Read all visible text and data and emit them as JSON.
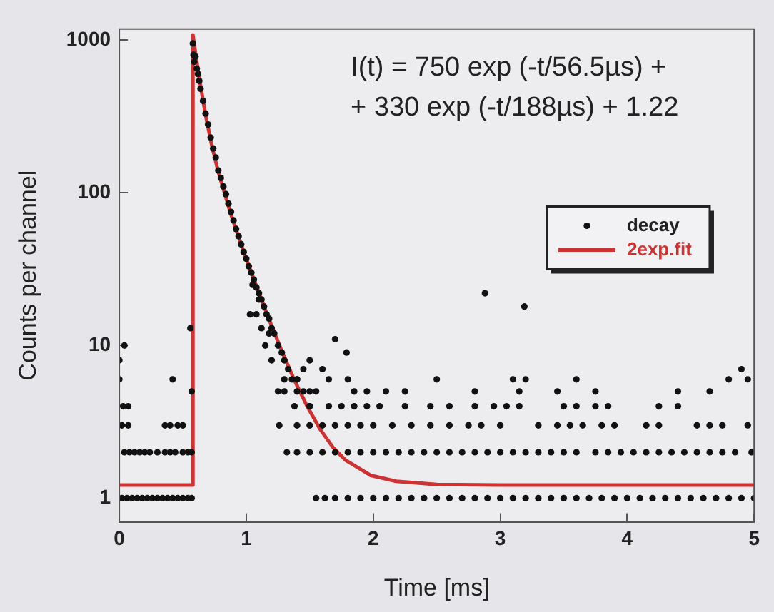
{
  "chart_data": {
    "type": "scatter",
    "xlabel": "Time [ms]",
    "ylabel": "Counts per channel",
    "xlim": [
      0,
      5
    ],
    "ylim": [
      0.72,
      1180
    ],
    "xticks": [
      0,
      1,
      2,
      3,
      4,
      5
    ],
    "yticks": [
      1,
      10,
      100,
      1000
    ],
    "log": "y",
    "grid": false,
    "legend": "right",
    "annotations": [
      "I(t) = 750 exp (-t/56.5µs) +",
      "+ 330 exp (-t/188µs) + 1.22"
    ],
    "series": [
      {
        "name": "decay",
        "type": "scatter",
        "color": "#111111",
        "marker": "circle",
        "x": [
          0.02,
          0.06,
          0.1,
          0.14,
          0.18,
          0.22,
          0.26,
          0.3,
          0.34,
          0.38,
          0.42,
          0.46,
          0.5,
          0.54,
          0.57,
          0.04,
          0.08,
          0.12,
          0.16,
          0.2,
          0.24,
          0.3,
          0.36,
          0.4,
          0.44,
          0.5,
          0.54,
          0.57,
          0.02,
          0.07,
          0.36,
          0.4,
          0.46,
          0.5,
          0.03,
          0.07,
          0,
          0,
          0.04,
          0.42,
          0.56,
          0.57,
          0.58,
          0.585,
          0.59,
          0.6,
          0.61,
          0.62,
          0.63,
          0.64,
          0.66,
          0.68,
          0.7,
          0.72,
          0.74,
          0.76,
          0.78,
          0.8,
          0.82,
          0.84,
          0.86,
          0.88,
          0.9,
          0.92,
          0.94,
          0.96,
          0.98,
          1.0,
          1.02,
          1.04,
          1.06,
          1.08,
          1.1,
          1.12,
          1.14,
          1.16,
          1.18,
          1.2,
          1.22,
          1.25,
          1.28,
          1.3,
          1.33,
          1.36,
          1.4,
          1.45,
          1.5,
          1.03,
          1.08,
          1.12,
          1.15,
          1.2,
          1.05,
          1.1,
          1.18,
          1.55,
          1.62,
          1.7,
          1.8,
          1.9,
          2.0,
          2.1,
          2.2,
          2.3,
          2.4,
          2.5,
          2.6,
          2.7,
          2.8,
          2.9,
          3.0,
          3.1,
          3.2,
          3.3,
          3.4,
          3.5,
          3.6,
          3.7,
          3.8,
          3.9,
          4.0,
          4.1,
          4.2,
          4.3,
          4.4,
          4.5,
          4.6,
          4.7,
          4.8,
          4.9,
          5.0,
          1.32,
          1.4,
          1.5,
          1.6,
          1.7,
          1.8,
          1.9,
          2.0,
          2.1,
          2.2,
          2.3,
          2.4,
          2.5,
          2.6,
          2.7,
          2.8,
          2.9,
          3.0,
          3.1,
          3.2,
          3.3,
          3.4,
          3.5,
          3.6,
          3.75,
          3.85,
          3.95,
          4.05,
          4.15,
          4.25,
          4.35,
          4.45,
          4.55,
          4.65,
          4.75,
          4.85,
          4.98,
          1.26,
          1.4,
          1.5,
          1.6,
          1.7,
          1.8,
          1.9,
          2.0,
          2.15,
          2.3,
          2.45,
          2.6,
          2.75,
          2.85,
          3.0,
          3.3,
          3.45,
          3.55,
          3.65,
          3.8,
          3.9,
          4.15,
          4.25,
          4.55,
          4.65,
          4.75,
          4.95,
          1.38,
          1.5,
          1.65,
          1.75,
          1.85,
          1.95,
          2.05,
          2.25,
          2.45,
          2.6,
          2.8,
          2.95,
          3.05,
          3.15,
          3.5,
          3.6,
          3.75,
          3.85,
          4.25,
          4.4,
          1.25,
          1.3,
          1.4,
          1.5,
          1.55,
          1.85,
          1.95,
          2.1,
          2.25,
          2.8,
          3.15,
          3.45,
          3.75,
          4.4,
          4.65,
          1.3,
          1.4,
          1.65,
          1.8,
          2.5,
          3.1,
          3.2,
          3.6,
          4.8,
          4.95,
          1.45,
          1.5,
          1.6,
          1.7,
          1.79,
          2.88,
          3.19,
          4.9
        ],
        "values": [
          1,
          1,
          1,
          1,
          1,
          1,
          1,
          1,
          1,
          1,
          1,
          1,
          1,
          1,
          1,
          2,
          2,
          2,
          2,
          2,
          2,
          2,
          2,
          2,
          2,
          2,
          2,
          2,
          3,
          3,
          3,
          3,
          3,
          3,
          4,
          4,
          6,
          8,
          10,
          6,
          13,
          5,
          950,
          800,
          720,
          780,
          650,
          600,
          540,
          480,
          400,
          330,
          280,
          230,
          195,
          170,
          140,
          125,
          110,
          98,
          85,
          75,
          66,
          58,
          52,
          46,
          41,
          37,
          33,
          30,
          27,
          24,
          22,
          20,
          18,
          16,
          15,
          13,
          12,
          10,
          9,
          8,
          7,
          6,
          6,
          5,
          4,
          16,
          16,
          13,
          10,
          8,
          25,
          20,
          12,
          1,
          1,
          1,
          1,
          1,
          1,
          1,
          1,
          1,
          1,
          1,
          1,
          1,
          1,
          1,
          1,
          1,
          1,
          1,
          1,
          1,
          1,
          1,
          1,
          1,
          1,
          1,
          1,
          1,
          1,
          1,
          1,
          1,
          1,
          1,
          1,
          2,
          2,
          2,
          2,
          2,
          2,
          2,
          2,
          2,
          2,
          2,
          2,
          2,
          2,
          2,
          2,
          2,
          2,
          2,
          2,
          2,
          2,
          2,
          2,
          2,
          2,
          2,
          2,
          2,
          2,
          2,
          2,
          2,
          2,
          2,
          2,
          2,
          3,
          3,
          3,
          3,
          3,
          3,
          3,
          3,
          3,
          3,
          3,
          3,
          3,
          3,
          3,
          3,
          3,
          3,
          3,
          3,
          3,
          3,
          3,
          3,
          3,
          3,
          3,
          4,
          4,
          4,
          4,
          4,
          4,
          4,
          4,
          4,
          4,
          4,
          4,
          4,
          4,
          4,
          4,
          4,
          4,
          4,
          4,
          5,
          5,
          5,
          5,
          5,
          5,
          5,
          5,
          5,
          5,
          5,
          5,
          5,
          5,
          5,
          6,
          6,
          6,
          6,
          6,
          6,
          6,
          6,
          6,
          6,
          7,
          8,
          7,
          11,
          9,
          22,
          18,
          7
        ]
      },
      {
        "name": "2exp.fit",
        "type": "line",
        "color": "#cc3333",
        "marker": "none",
        "line_style": "solid",
        "x": [
          0,
          0.58,
          0.58,
          0.6,
          0.63,
          0.68,
          0.73,
          0.78,
          0.88,
          0.98,
          1.08,
          1.18,
          1.28,
          1.38,
          1.48,
          1.58,
          1.68,
          1.78,
          1.98,
          2.18,
          2.5,
          3,
          4,
          5
        ],
        "values": [
          1.22,
          1.22,
          1080,
          823,
          564,
          323,
          202,
          137,
          72,
          41,
          24.4,
          14.8,
          9.2,
          5.9,
          4.0,
          2.84,
          2.17,
          1.78,
          1.41,
          1.29,
          1.23,
          1.22,
          1.22,
          1.22
        ]
      }
    ]
  }
}
